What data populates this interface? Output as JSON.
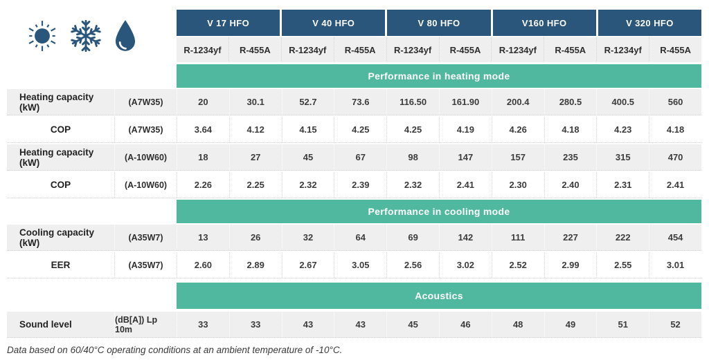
{
  "theme": {
    "header_blue": "#2a567c",
    "band_green": "#4fb89f",
    "row_gray": "#efefef",
    "icon_blue": "#2a567c"
  },
  "icons": [
    "sun-icon",
    "snowflake-icon",
    "droplet-icon"
  ],
  "header": {
    "models": [
      "V 17 HFO",
      "V 40 HFO",
      "V 80 HFO",
      "V160 HFO",
      "V 320 HFO"
    ],
    "refrigerants": [
      "R-1234yf",
      "R-455A"
    ]
  },
  "sections": [
    {
      "title": "Performance in heating mode",
      "rows": [
        {
          "label": "Heating capacity (kW)",
          "condition": "(A7W35)",
          "values": [
            "20",
            "30.1",
            "52.7",
            "73.6",
            "116.50",
            "161.90",
            "200.4",
            "280.5",
            "400.5",
            "560"
          ]
        },
        {
          "label": "COP",
          "condition": "(A7W35)",
          "values": [
            "3.64",
            "4.12",
            "4.15",
            "4.25",
            "4.25",
            "4.19",
            "4.26",
            "4.18",
            "4.23",
            "4.18"
          ]
        },
        {
          "label": "Heating capacity (kW)",
          "condition": "(A-10W60)",
          "values": [
            "18",
            "27",
            "45",
            "67",
            "98",
            "147",
            "157",
            "235",
            "315",
            "470"
          ]
        },
        {
          "label": "COP",
          "condition": "(A-10W60)",
          "values": [
            "2.26",
            "2.25",
            "2.32",
            "2.39",
            "2.32",
            "2.41",
            "2.30",
            "2.40",
            "2.31",
            "2.41"
          ]
        }
      ]
    },
    {
      "title": "Performance in cooling mode",
      "rows": [
        {
          "label": "Cooling capacity (kW)",
          "condition": "(A35W7)",
          "values": [
            "13",
            "26",
            "32",
            "64",
            "69",
            "142",
            "111",
            "227",
            "222",
            "454"
          ]
        },
        {
          "label": "EER",
          "condition": "(A35W7)",
          "values": [
            "2.60",
            "2.89",
            "2.67",
            "3.05",
            "2.56",
            "3.02",
            "2.52",
            "2.99",
            "2.55",
            "3.01"
          ]
        }
      ]
    },
    {
      "title": "Acoustics",
      "rows": [
        {
          "label": "Sound level",
          "condition": "(dB[A]) Lp 10m",
          "values": [
            "33",
            "33",
            "43",
            "43",
            "45",
            "46",
            "48",
            "49",
            "51",
            "52"
          ]
        }
      ]
    }
  ],
  "footnote": "Data based on 60/40°C operating conditions at an ambient temperature of -10°C."
}
